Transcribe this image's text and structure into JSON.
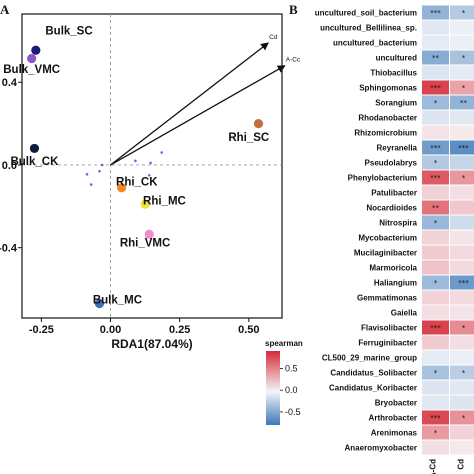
{
  "chart_data": [
    {
      "type": "scatter",
      "panel_label": "A",
      "xlabel": "RDA1(87.04%)",
      "ylabel": "",
      "xlim": [
        -0.32,
        0.62
      ],
      "ylim": [
        -0.74,
        0.73
      ],
      "x_ticks": [
        {
          "v": -0.25,
          "label": "-0.25"
        },
        {
          "v": 0.0,
          "label": "0.00"
        },
        {
          "v": 0.25,
          "label": "0.25"
        },
        {
          "v": 0.5,
          "label": "0.50"
        }
      ],
      "y_ticks": [
        {
          "v": 0.4,
          "label": "0.4"
        },
        {
          "v": 0.0,
          "label": "0.0"
        },
        {
          "v": -0.4,
          "label": "-0.4"
        }
      ],
      "samples": [
        {
          "label": "Bulk_SC",
          "x": -0.27,
          "y": 0.555,
          "color": "#1c1c78",
          "lx": -0.15,
          "ly": 0.63
        },
        {
          "label": "Bulk_VMC",
          "x": -0.285,
          "y": 0.515,
          "color": "#8a56c8",
          "lx": -0.285,
          "ly": 0.445
        },
        {
          "label": "Bulk_CK",
          "x": -0.275,
          "y": 0.08,
          "color": "#0d1b3e",
          "lx": -0.275,
          "ly": 0.0
        },
        {
          "label": "Rhi_SC",
          "x": 0.535,
          "y": 0.2,
          "color": "#c0703a",
          "lx": 0.5,
          "ly": 0.115
        },
        {
          "label": "Rhi_CK",
          "x": 0.04,
          "y": -0.11,
          "color": "#f08a1c",
          "lx": 0.095,
          "ly": -0.1
        },
        {
          "label": "Rhi_MC",
          "x": 0.125,
          "y": -0.19,
          "color": "#f2e23a",
          "lx": 0.195,
          "ly": -0.19
        },
        {
          "label": "Rhi_VMC",
          "x": 0.14,
          "y": -0.335,
          "color": "#f08ed0",
          "lx": 0.125,
          "ly": -0.395
        },
        {
          "label": "Bulk_MC",
          "x": -0.04,
          "y": -0.67,
          "color": "#3f6fb8",
          "lx": 0.025,
          "ly": -0.67
        }
      ],
      "species_points": [
        {
          "x": -0.03,
          "y": 0.0
        },
        {
          "x": -0.04,
          "y": -0.03
        },
        {
          "x": -0.085,
          "y": -0.045
        },
        {
          "x": 0.09,
          "y": 0.02
        },
        {
          "x": 0.145,
          "y": 0.01
        },
        {
          "x": 0.14,
          "y": -0.05
        },
        {
          "x": 0.185,
          "y": 0.06
        },
        {
          "x": -0.07,
          "y": -0.095
        }
      ],
      "vectors": [
        {
          "label": "Cd",
          "x": 0.57,
          "y": 0.59
        },
        {
          "label": "A-Cc",
          "x": 0.63,
          "y": 0.48
        }
      ]
    },
    {
      "type": "heatmap",
      "panel_label": "B",
      "columns": [
        "A-Cd",
        "Cd"
      ],
      "legend": {
        "title": "spearman",
        "ticks": [
          0.5,
          0.0,
          -0.5
        ],
        "tick_labels": [
          "0.5",
          "0.0",
          "-0.5"
        ],
        "range": [
          -0.8,
          0.9
        ]
      },
      "rows": [
        {
          "name": "uncultured_soil_bacterium",
          "values": [
            -0.45,
            -0.3
          ],
          "stars": [
            "***",
            "*"
          ]
        },
        {
          "name": "uncultured_Bellilinea_sp.",
          "values": [
            -0.1,
            -0.05
          ],
          "stars": [
            "",
            ""
          ]
        },
        {
          "name": "uncultured_bacterium",
          "values": [
            -0.08,
            -0.06
          ],
          "stars": [
            "",
            ""
          ]
        },
        {
          "name": "uncultured",
          "values": [
            -0.5,
            -0.35
          ],
          "stars": [
            "**",
            "*"
          ]
        },
        {
          "name": "Thiobacillus",
          "values": [
            -0.12,
            -0.08
          ],
          "stars": [
            "",
            ""
          ]
        },
        {
          "name": "Sphingomonas",
          "values": [
            0.75,
            0.35
          ],
          "stars": [
            "***",
            "*"
          ]
        },
        {
          "name": "Sorangium",
          "values": [
            -0.4,
            -0.45
          ],
          "stars": [
            "*",
            "**"
          ]
        },
        {
          "name": "Rhodanobacter",
          "values": [
            -0.12,
            -0.1
          ],
          "stars": [
            "",
            ""
          ]
        },
        {
          "name": "Rhizomicrobium",
          "values": [
            0.08,
            0.06
          ],
          "stars": [
            "",
            ""
          ]
        },
        {
          "name": "Reyranella",
          "values": [
            -0.6,
            -0.7
          ],
          "stars": [
            "***",
            "***"
          ]
        },
        {
          "name": "Pseudolabrys",
          "values": [
            -0.3,
            -0.22
          ],
          "stars": [
            "*",
            ""
          ]
        },
        {
          "name": "Phenylobacterium",
          "values": [
            0.65,
            0.4
          ],
          "stars": [
            "***",
            "*"
          ]
        },
        {
          "name": "Patulibacter",
          "values": [
            0.15,
            0.1
          ],
          "stars": [
            "",
            ""
          ]
        },
        {
          "name": "Nocardioides",
          "values": [
            0.55,
            0.2
          ],
          "stars": [
            "**",
            ""
          ]
        },
        {
          "name": "Nitrospira",
          "values": [
            -0.42,
            -0.18
          ],
          "stars": [
            "*",
            ""
          ]
        },
        {
          "name": "Mycobacterium",
          "values": [
            0.15,
            0.08
          ],
          "stars": [
            "",
            ""
          ]
        },
        {
          "name": "Mucilaginibacter",
          "values": [
            0.18,
            0.12
          ],
          "stars": [
            "",
            ""
          ]
        },
        {
          "name": "Marmoricola",
          "values": [
            0.22,
            0.12
          ],
          "stars": [
            "",
            ""
          ]
        },
        {
          "name": "Haliangium",
          "values": [
            -0.4,
            -0.62
          ],
          "stars": [
            "*",
            "***"
          ]
        },
        {
          "name": "Gemmatimonas",
          "values": [
            0.15,
            0.12
          ],
          "stars": [
            "",
            ""
          ]
        },
        {
          "name": "Gaiella",
          "values": [
            0.1,
            0.08
          ],
          "stars": [
            "",
            ""
          ]
        },
        {
          "name": "Flavisolibacter",
          "values": [
            0.75,
            0.45
          ],
          "stars": [
            "***",
            "*"
          ]
        },
        {
          "name": "Ferruginibacter",
          "values": [
            0.18,
            0.1
          ],
          "stars": [
            "",
            ""
          ]
        },
        {
          "name": "CL500_29_marine_group",
          "values": [
            -0.08,
            -0.06
          ],
          "stars": [
            "",
            ""
          ]
        },
        {
          "name": "Candidatus_Solibacter",
          "values": [
            -0.35,
            -0.28
          ],
          "stars": [
            "*",
            "*"
          ]
        },
        {
          "name": "Candidatus_Koribacter",
          "values": [
            -0.12,
            -0.1
          ],
          "stars": [
            "",
            ""
          ]
        },
        {
          "name": "Bryobacter",
          "values": [
            -0.1,
            -0.12
          ],
          "stars": [
            "",
            ""
          ]
        },
        {
          "name": "Arthrobacter",
          "values": [
            0.72,
            0.42
          ],
          "stars": [
            "***",
            "*"
          ]
        },
        {
          "name": "Arenimonas",
          "values": [
            0.38,
            0.15
          ],
          "stars": [
            "*",
            ""
          ]
        },
        {
          "name": "Anaeromyxobacter",
          "values": [
            0.1,
            0.06
          ],
          "stars": [
            "",
            ""
          ]
        }
      ]
    }
  ]
}
